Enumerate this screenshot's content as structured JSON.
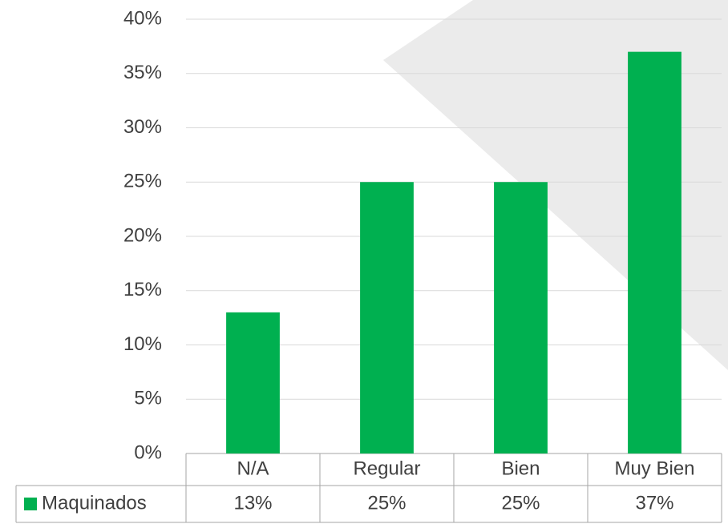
{
  "chart_data": {
    "type": "bar",
    "categories": [
      "N/A",
      "Regular",
      "Bien",
      "Muy Bien"
    ],
    "series": [
      {
        "name": "Maquinados",
        "color": "#00b050",
        "values": [
          13,
          25,
          25,
          37
        ],
        "value_labels": [
          "13%",
          "25%",
          "25%",
          "37%"
        ]
      }
    ],
    "ylim": [
      0,
      40
    ],
    "yticks": [
      {
        "value": 0,
        "label": "0%"
      },
      {
        "value": 5,
        "label": "5%"
      },
      {
        "value": 10,
        "label": "10%"
      },
      {
        "value": 15,
        "label": "15%"
      },
      {
        "value": 20,
        "label": "20%"
      },
      {
        "value": 25,
        "label": "25%"
      },
      {
        "value": 30,
        "label": "30%"
      },
      {
        "value": 35,
        "label": "35%"
      },
      {
        "value": 40,
        "label": "40%"
      }
    ],
    "grid": true,
    "data_table": true
  }
}
